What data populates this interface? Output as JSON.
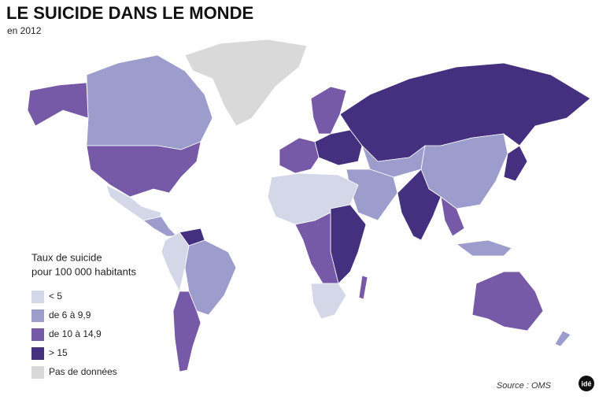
{
  "title": "LE SUICIDE DANS LE MONDE",
  "subtitle": "en 2012",
  "legend": {
    "title": [
      "Taux de suicide",
      "pour 100 000 habitants"
    ],
    "items": [
      {
        "label": "< 5",
        "color": "#d4d7e7"
      },
      {
        "label": "de 6 à 9,9",
        "color": "#9c9dcd"
      },
      {
        "label": "de 10 à 14,9",
        "color": "#7659a7"
      },
      {
        "label": "> 15",
        "color": "#44307f"
      },
      {
        "label": "Pas de données",
        "color": "#d9d9d9"
      }
    ]
  },
  "source": "Source : OMS",
  "logo": "idé"
}
